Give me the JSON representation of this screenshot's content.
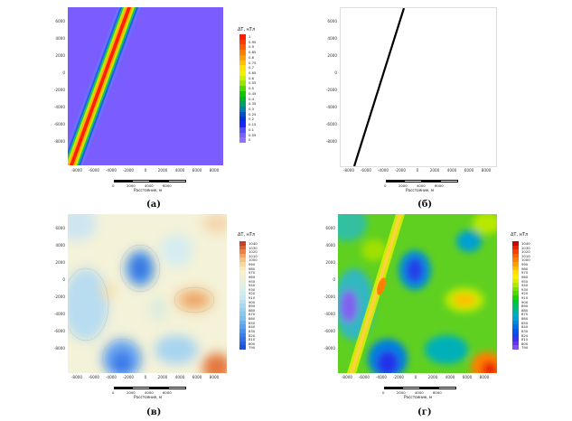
{
  "yticks": [
    "6000",
    "4000",
    "2000",
    "0",
    "-2000",
    "-4000",
    "-6000",
    "-8000"
  ],
  "xticks": [
    "-8000",
    "-6000",
    "-4000",
    "-2000",
    "0",
    "2000",
    "4000",
    "6000",
    "8000"
  ],
  "scalebar": {
    "labels": [
      "0",
      "2000",
      "4000",
      "6000"
    ],
    "title": "Расстояние, м"
  },
  "panels": [
    {
      "caption": "(а)"
    },
    {
      "caption": "(б)"
    },
    {
      "caption": "(в)"
    },
    {
      "caption": "(г)"
    }
  ],
  "colorbar_a": {
    "title": "ΔT, нТл",
    "labels": [
      "1",
      "0.95",
      "0.9",
      "0.85",
      "0.8",
      "0.75",
      "0.7",
      "0.65",
      "0.6",
      "0.55",
      "0.5",
      "0.45",
      "0.4",
      "0.35",
      "0.3",
      "0.25",
      "0.2",
      "0.15",
      "0.1",
      "0.05",
      "0"
    ],
    "colors": [
      "#ff1a00",
      "#ff3a00",
      "#ff5c00",
      "#ff8000",
      "#ffa000",
      "#ffc000",
      "#ffe000",
      "#f0f000",
      "#c8f000",
      "#90e800",
      "#50d800",
      "#10c800",
      "#00b030",
      "#00a060",
      "#0080a0",
      "#0050c8",
      "#0030e0",
      "#2020ff",
      "#5050ff",
      "#7a60ff",
      "#8f72ff"
    ]
  },
  "colorbar_c": {
    "title": "ΔT, нТл",
    "labels": [
      "1040",
      "1030",
      "1020",
      "1010",
      "1000",
      "990",
      "980",
      "970",
      "960",
      "950",
      "940",
      "930",
      "920",
      "910",
      "900",
      "890",
      "880",
      "870",
      "860",
      "850",
      "840",
      "830",
      "820",
      "810",
      "800",
      "790"
    ],
    "colors": [
      "#c84020",
      "#e06030",
      "#f08040",
      "#f8a060",
      "#f8c080",
      "#f8d8a0",
      "#f8e8b8",
      "#f8f0c8",
      "#f0f0d0",
      "#e8f0d8",
      "#e0f0e0",
      "#d8f0e8",
      "#d0eef0",
      "#c8e8f0",
      "#b8e0f0",
      "#a8d8f0",
      "#98d0f0",
      "#88c8f0",
      "#78c0f0",
      "#68b0f0",
      "#58a0f0",
      "#4890f0",
      "#3880f0",
      "#3070e8",
      "#2860e0",
      "#2050d8"
    ]
  },
  "colorbar_d": {
    "title": "ΔT, нТл",
    "labels": [
      "1040",
      "1030",
      "1020",
      "1010",
      "1000",
      "990",
      "980",
      "970",
      "960",
      "950",
      "940",
      "930",
      "920",
      "910",
      "900",
      "890",
      "880",
      "870",
      "860",
      "850",
      "840",
      "830",
      "820",
      "810",
      "800",
      "790"
    ],
    "colors": [
      "#d00000",
      "#e82000",
      "#f84000",
      "#ff6000",
      "#ff8000",
      "#ffa000",
      "#ffc000",
      "#ffe000",
      "#f8f000",
      "#d8f000",
      "#b0e800",
      "#80e000",
      "#50d800",
      "#20d000",
      "#00c830",
      "#00c060",
      "#00b890",
      "#00b0b8",
      "#00a0d0",
      "#0088e0",
      "#0070e8",
      "#0058f0",
      "#2040f0",
      "#4030f0",
      "#6038f0",
      "#8050f0"
    ]
  },
  "colors": {
    "panel_a_background": "#7b5cff",
    "panel_b_line": "#000000",
    "panel_c_background": "#f4f2d8",
    "panel_d_background": "#5fd020"
  }
}
